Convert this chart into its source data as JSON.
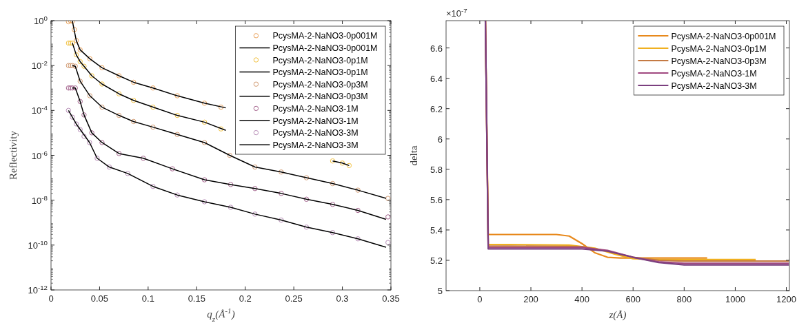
{
  "chart_data": [
    {
      "type": "scatter",
      "xlabel": "q$_{z}$(Å$^{-1}$)",
      "ylabel": "Reflectivity",
      "log": "y",
      "xlim": [
        0,
        0.35
      ],
      "ylim": [
        1e-12,
        1
      ],
      "xticks": [
        0,
        0.05,
        0.1,
        0.15,
        0.2,
        0.25,
        0.3,
        0.35
      ],
      "yticks": [
        {
          "value": 1,
          "label": "10$^{0}$"
        },
        {
          "value": 0.01,
          "label": "10$^{-2}$"
        },
        {
          "value": 0.0001,
          "label": "10$^{-4}$"
        },
        {
          "value": 1e-06,
          "label": "10$^{-6}$"
        },
        {
          "value": 1e-08,
          "label": "10$^{-8}$"
        },
        {
          "value": 1e-10,
          "label": "10$^{-10}$"
        },
        {
          "value": 1e-12,
          "label": "10$^{-12}$"
        }
      ],
      "grid": false,
      "legend": "top right",
      "series": [
        {
          "type": "scatter",
          "marker": "circle",
          "name": "PcysMA-2-NaNO3-0p001M",
          "color": "#eba35c",
          "x": [
            0.018,
            0.02,
            0.022,
            0.024,
            0.026,
            0.03,
            0.04,
            0.0525,
            0.07,
            0.085,
            0.105,
            0.13,
            0.158,
            0.175
          ],
          "values": [
            0.9,
            1,
            0.95,
            0.4,
            0.13,
            0.05,
            0.02,
            0.008,
            0.0035,
            0.0018,
            0.001,
            0.00045,
            0.00021,
            0.00014
          ]
        },
        {
          "type": "line",
          "marker": "none",
          "name": "PcysMA-2-NaNO3-0p001M",
          "color": "#000000",
          "x": [
            0.022,
            0.026,
            0.03,
            0.04,
            0.0525,
            0.07,
            0.085,
            0.105,
            0.13,
            0.158,
            0.18
          ],
          "values": [
            0.95,
            0.13,
            0.05,
            0.02,
            0.008,
            0.0035,
            0.0018,
            0.001,
            0.00045,
            0.00021,
            0.00013
          ]
        },
        {
          "type": "scatter",
          "marker": "circle",
          "name": "PcysMA-2-NaNO3-0p1M",
          "color": "#f2c13e",
          "x": [
            0.018,
            0.02,
            0.022,
            0.026,
            0.03,
            0.034,
            0.042,
            0.0525,
            0.07,
            0.085,
            0.105,
            0.13,
            0.158,
            0.175,
            0.29,
            0.3,
            0.307
          ],
          "values": [
            0.1,
            0.1,
            0.1,
            0.03,
            0.015,
            0.0093,
            0.0035,
            0.0015,
            0.00055,
            0.00028,
            0.00014,
            6e-05,
            3e-05,
            1.5e-05,
            5.6e-07,
            4.5e-07,
            3.5e-07
          ]
        },
        {
          "type": "line",
          "marker": "none",
          "name": "PcysMA-2-NaNO3-0p1M",
          "color": "#000000",
          "x": [
            0.022,
            0.026,
            0.03,
            0.034,
            0.042,
            0.0525,
            0.07,
            0.085,
            0.105,
            0.13,
            0.158,
            0.18,
            null,
            0.29,
            0.3,
            0.307
          ],
          "values": [
            0.1,
            0.03,
            0.015,
            0.0093,
            0.0035,
            0.0015,
            0.00055,
            0.00028,
            0.00014,
            6e-05,
            3e-05,
            1.3e-05,
            null,
            5.6e-07,
            4.5e-07,
            3.5e-07
          ]
        },
        {
          "type": "scatter",
          "marker": "circle",
          "name": "PcysMA-2-NaNO3-0p3M",
          "color": "#d29b72",
          "x": [
            0.018,
            0.02,
            0.022,
            0.025,
            0.03,
            0.04,
            0.0525,
            0.07,
            0.085,
            0.105,
            0.13,
            0.158,
            0.184,
            0.21,
            0.237,
            0.263,
            0.29,
            0.316,
            0.347
          ],
          "values": [
            0.01,
            0.01,
            0.01,
            0.0093,
            0.002,
            0.00045,
            0.00014,
            6e-05,
            3.2e-05,
            1.8e-05,
            8.5e-06,
            3.7e-06,
            1e-06,
            3e-07,
            1.8e-07,
            1e-07,
            5.5e-08,
            2.8e-08,
            1.2e-08
          ]
        },
        {
          "type": "line",
          "marker": "none",
          "name": "PcysMA-2-NaNO3-0p3M",
          "color": "#000000",
          "x": [
            0.022,
            0.025,
            0.03,
            0.04,
            0.0525,
            0.07,
            0.085,
            0.105,
            0.13,
            0.158,
            0.184,
            0.21,
            0.237,
            0.263,
            0.29,
            0.316,
            0.345
          ],
          "values": [
            0.01,
            0.0093,
            0.002,
            0.00045,
            0.00014,
            6e-05,
            3.2e-05,
            1.8e-05,
            8.5e-06,
            3.7e-06,
            1e-06,
            3e-07,
            1.8e-07,
            1e-07,
            5.5e-08,
            2.8e-08,
            1.2e-08
          ]
        },
        {
          "type": "scatter",
          "marker": "circle",
          "name": "PcysMA-2-NaNO3-1M",
          "color": "#a3628c",
          "x": [
            0.018,
            0.02,
            0.022,
            0.025,
            0.03,
            0.034,
            0.042,
            0.0525,
            0.07,
            0.095,
            0.125,
            0.158,
            0.185,
            0.21,
            0.237,
            0.263,
            0.29,
            0.316,
            0.347
          ],
          "values": [
            0.001,
            0.001,
            0.001,
            0.001,
            0.00025,
            6.3e-05,
            1e-05,
            3.7e-06,
            1.2e-06,
            7.4e-07,
            2.5e-07,
            8.1e-08,
            5e-08,
            3.3e-08,
            2e-08,
            1.1e-08,
            6.5e-09,
            3.5e-09,
            1.8e-09
          ]
        },
        {
          "type": "line",
          "marker": "none",
          "name": "PcysMA-2-NaNO3-1M",
          "color": "#000000",
          "x": [
            0.022,
            0.025,
            0.03,
            0.034,
            0.042,
            0.0525,
            0.07,
            0.095,
            0.125,
            0.158,
            0.185,
            0.21,
            0.237,
            0.263,
            0.29,
            0.316,
            0.345
          ],
          "values": [
            0.001,
            0.001,
            0.00025,
            6.3e-05,
            1e-05,
            3.7e-06,
            1.2e-06,
            7.4e-07,
            2.5e-07,
            8.1e-08,
            5e-08,
            3.3e-08,
            2e-08,
            1.1e-08,
            6.5e-09,
            3.5e-09,
            1.4e-09
          ]
        },
        {
          "type": "scatter",
          "marker": "circle",
          "name": "PcysMA-2-NaNO3-3M",
          "color": "#b88fb8",
          "x": [
            0.018,
            0.022,
            0.026,
            0.03,
            0.034,
            0.0397,
            0.0475,
            0.06,
            0.079,
            0.105,
            0.13,
            0.158,
            0.185,
            0.21,
            0.237,
            0.263,
            0.29,
            0.316,
            0.347
          ],
          "values": [
            0.0001,
            5e-05,
            2.5e-05,
            1.4e-05,
            7e-06,
            3.7e-06,
            7.4e-07,
            3e-07,
            1.55e-07,
            4.1e-08,
            1.7e-08,
            8.5e-09,
            4.8e-09,
            2.4e-09,
            1.3e-09,
            6.3e-10,
            3.6e-10,
            1.9e-10,
            1.3e-10
          ]
        },
        {
          "type": "line",
          "marker": "none",
          "name": "PcysMA-2-NaNO3-3M",
          "color": "#000000",
          "x": [
            0.018,
            0.022,
            0.026,
            0.0397,
            0.0475,
            0.06,
            0.079,
            0.105,
            0.13,
            0.158,
            0.185,
            0.21,
            0.237,
            0.263,
            0.29,
            0.316,
            0.345
          ],
          "values": [
            0.0001,
            5e-05,
            2.5e-05,
            3.7e-06,
            7.4e-07,
            3e-07,
            1.55e-07,
            4.1e-08,
            1.7e-08,
            8.5e-09,
            4.8e-09,
            2.4e-09,
            1.3e-09,
            6.3e-10,
            3.6e-10,
            1.9e-10,
            8e-11
          ]
        }
      ]
    },
    {
      "type": "line",
      "xlabel": "z(Å)",
      "ylabel": "delta",
      "annotations": [
        "×10$^{-7}$"
      ],
      "xlim": [
        -132,
        1212
      ],
      "ylim": [
        5,
        6.78
      ],
      "xticks": [
        0,
        200,
        400,
        600,
        800,
        1000,
        1200
      ],
      "yticks": [
        5,
        5.2,
        5.4,
        5.6,
        5.8,
        6,
        6.2,
        6.4,
        6.6
      ],
      "grid": false,
      "legend": "top right",
      "marker": "none",
      "line_style": "solid",
      "series": [
        {
          "name": "PcysMA-2-NaNO3-0p001M",
          "color": "#e8891c",
          "x": [
            22,
            33,
            300,
            350,
            400,
            450,
            500,
            550,
            890
          ],
          "values": [
            6.78,
            5.37,
            5.37,
            5.36,
            5.31,
            5.25,
            5.22,
            5.215,
            5.215
          ]
        },
        {
          "name": "PcysMA-2-NaNO3-0p1M",
          "color": "#f0b020",
          "x": [
            22,
            33,
            350,
            450,
            530,
            600,
            700,
            1080
          ],
          "values": [
            6.78,
            5.305,
            5.3,
            5.28,
            5.24,
            5.21,
            5.205,
            5.205
          ]
        },
        {
          "name": "PcysMA-2-NaNO3-0p3M",
          "color": "#c47a44",
          "x": [
            22,
            33,
            400,
            500,
            600,
            700,
            800,
            1210
          ],
          "values": [
            6.78,
            5.295,
            5.29,
            5.26,
            5.22,
            5.2,
            5.195,
            5.195
          ]
        },
        {
          "name": "PcysMA-2-NaNO3-1M",
          "color": "#a04880",
          "x": [
            22,
            33,
            400,
            500,
            600,
            700,
            800,
            1210
          ],
          "values": [
            6.78,
            5.285,
            5.285,
            5.265,
            5.22,
            5.19,
            5.18,
            5.18
          ]
        },
        {
          "name": "PcysMA-2-NaNO3-3M",
          "color": "#7b3f7f",
          "x": [
            22,
            33,
            400,
            500,
            600,
            700,
            800,
            1210
          ],
          "values": [
            6.78,
            5.275,
            5.275,
            5.26,
            5.22,
            5.185,
            5.17,
            5.17
          ]
        }
      ]
    }
  ]
}
